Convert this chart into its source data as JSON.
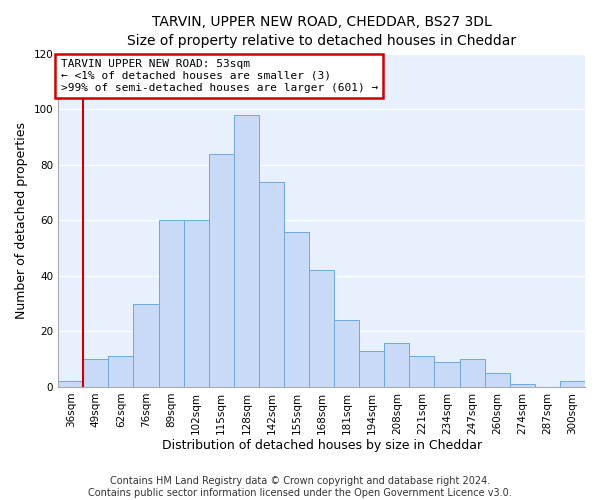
{
  "title": "TARVIN, UPPER NEW ROAD, CHEDDAR, BS27 3DL",
  "subtitle": "Size of property relative to detached houses in Cheddar",
  "xlabel": "Distribution of detached houses by size in Cheddar",
  "ylabel": "Number of detached properties",
  "bar_labels": [
    "36sqm",
    "49sqm",
    "62sqm",
    "76sqm",
    "89sqm",
    "102sqm",
    "115sqm",
    "128sqm",
    "142sqm",
    "155sqm",
    "168sqm",
    "181sqm",
    "194sqm",
    "208sqm",
    "221sqm",
    "234sqm",
    "247sqm",
    "260sqm",
    "274sqm",
    "287sqm",
    "300sqm"
  ],
  "bar_heights": [
    2,
    10,
    11,
    30,
    60,
    60,
    84,
    98,
    74,
    56,
    42,
    24,
    13,
    16,
    11,
    9,
    10,
    5,
    1,
    0,
    2
  ],
  "bar_color": "#c9daf8",
  "bar_edge_color": "#6fa8dc",
  "annotation_box_text": "TARVIN UPPER NEW ROAD: 53sqm\n← <1% of detached houses are smaller (3)\n>99% of semi-detached houses are larger (601) →",
  "annotation_box_edge_color": "#cc0000",
  "annotation_line_color": "#cc0000",
  "red_line_index": 1,
  "ylim": [
    0,
    120
  ],
  "yticks": [
    0,
    20,
    40,
    60,
    80,
    100,
    120
  ],
  "footer_line1": "Contains HM Land Registry data © Crown copyright and database right 2024.",
  "footer_line2": "Contains public sector information licensed under the Open Government Licence v3.0.",
  "plot_bg_color": "#e8f0fe",
  "fig_bg_color": "#ffffff",
  "grid_color": "#ffffff",
  "title_fontsize": 10,
  "subtitle_fontsize": 9,
  "axis_label_fontsize": 9,
  "tick_fontsize": 7.5,
  "annotation_fontsize": 8,
  "footer_fontsize": 7
}
